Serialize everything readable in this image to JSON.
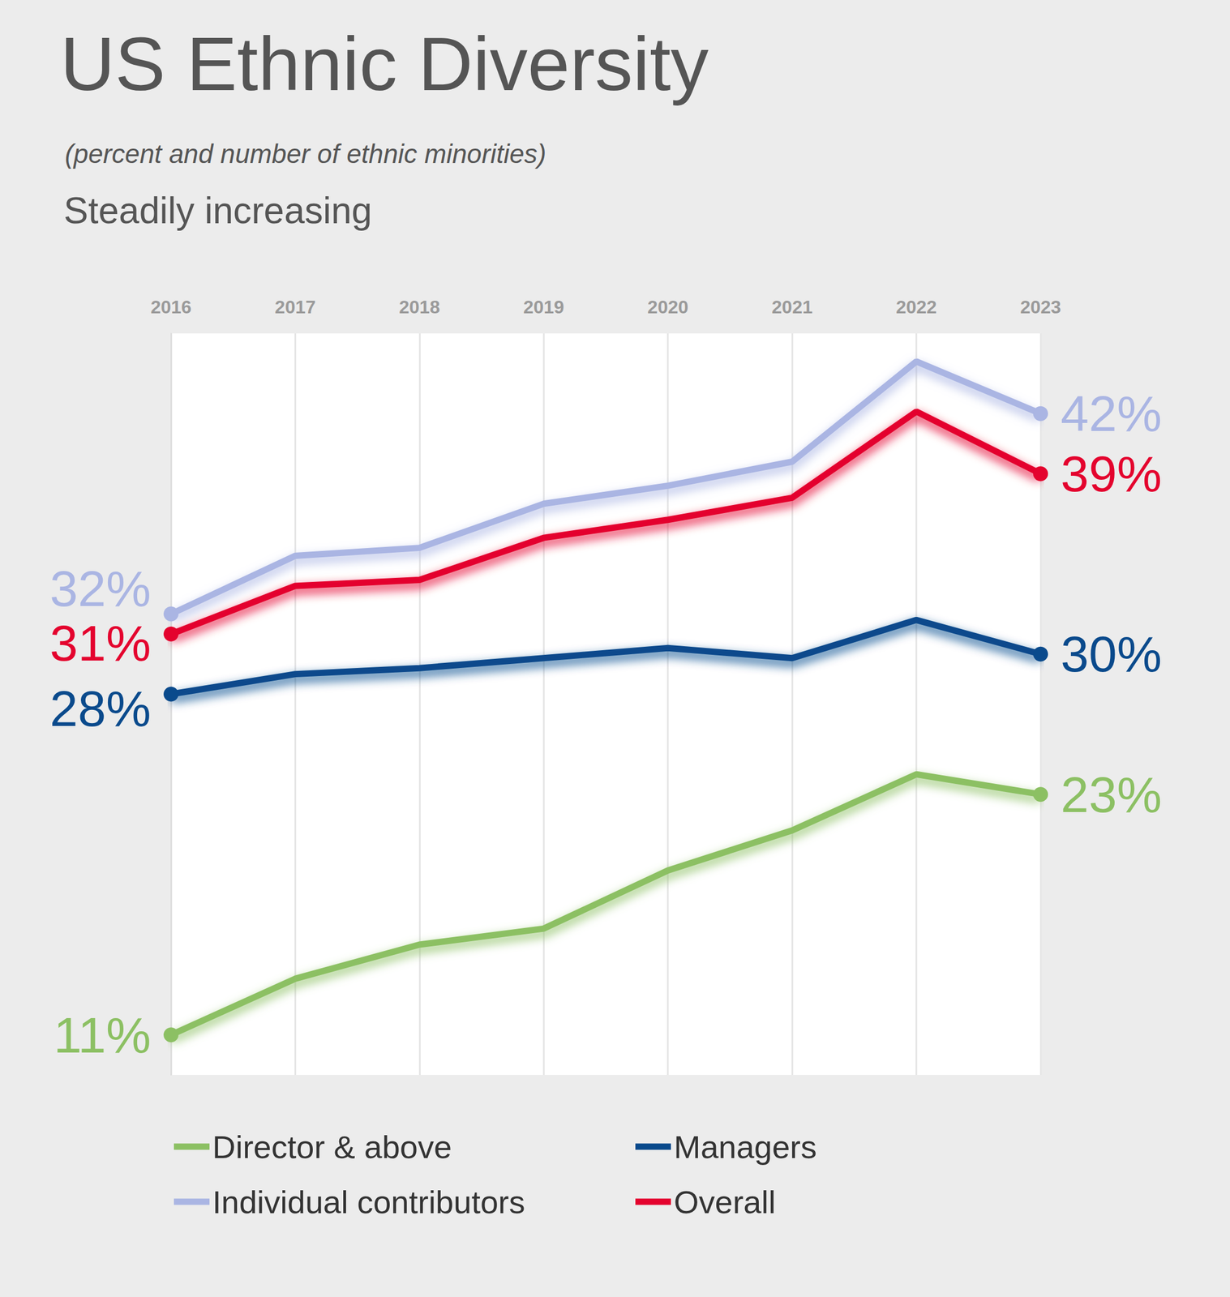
{
  "chart_data": {
    "type": "line",
    "title": "US Ethnic Diversity",
    "subtitle": "(percent and number of ethnic minorities)",
    "annotation": "Steadily increasing",
    "categories": [
      "2016",
      "2017",
      "2018",
      "2019",
      "2020",
      "2021",
      "2022",
      "2023"
    ],
    "series": [
      {
        "name": "Director & above",
        "color": "#8cc063",
        "values": [
          11,
          13.8,
          15.5,
          16.3,
          19.2,
          21.2,
          24.0,
          23
        ],
        "value_labels": [
          "11%",
          null,
          null,
          null,
          null,
          null,
          null,
          "23%"
        ]
      },
      {
        "name": "Individual contributors",
        "color": "#aab5e3",
        "values": [
          32,
          34.9,
          35.3,
          37.5,
          38.4,
          39.6,
          44.6,
          42
        ],
        "value_labels": [
          "32%",
          null,
          null,
          null,
          null,
          null,
          null,
          "42%"
        ]
      },
      {
        "name": "Managers",
        "color": "#0a4a8c",
        "values": [
          28,
          29.0,
          29.3,
          29.8,
          30.3,
          29.8,
          31.7,
          30
        ],
        "value_labels": [
          "28%",
          null,
          null,
          null,
          null,
          null,
          null,
          "30%"
        ]
      },
      {
        "name": "Overall",
        "color": "#e4032e",
        "values": [
          31,
          33.4,
          33.7,
          35.8,
          36.7,
          37.8,
          42.1,
          39
        ],
        "value_labels": [
          "31%",
          null,
          null,
          null,
          null,
          null,
          null,
          "39%"
        ]
      }
    ],
    "ylim": [
      9,
      46
    ],
    "grid": "x",
    "tick_labels": "x",
    "marker": "circle",
    "legend": "bottom"
  }
}
